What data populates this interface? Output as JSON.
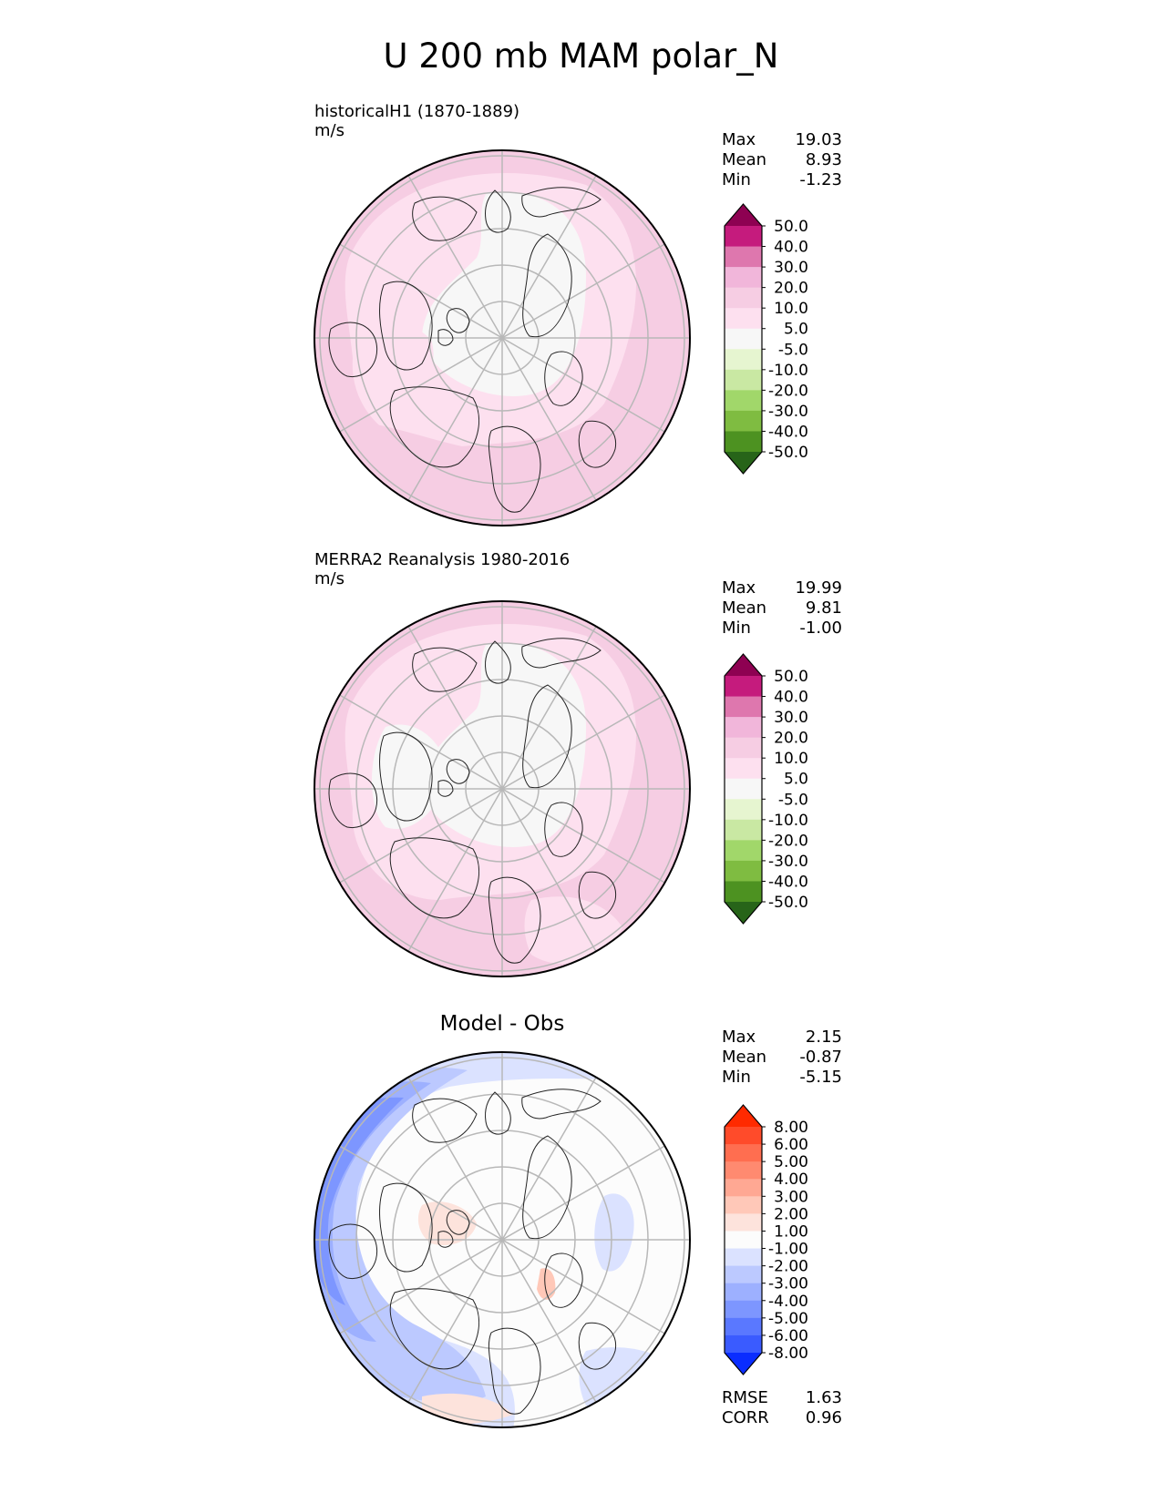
{
  "title": "U 200 mb MAM polar_N",
  "panels": [
    {
      "label_line1": "historicalH1 (1870-1889)",
      "label_line2": "m/s",
      "stats": [
        {
          "label": "Max",
          "value": "19.03"
        },
        {
          "label": "Mean",
          "value": "8.93"
        },
        {
          "label": "Min",
          "value": "-1.23"
        }
      ]
    },
    {
      "label_line1": "MERRA2 Reanalysis 1980-2016",
      "label_line2": "m/s",
      "stats": [
        {
          "label": "Max",
          "value": "19.99"
        },
        {
          "label": "Mean",
          "value": "9.81"
        },
        {
          "label": "Min",
          "value": "-1.00"
        }
      ]
    },
    {
      "title": "Model - Obs",
      "stats": [
        {
          "label": "Max",
          "value": "2.15"
        },
        {
          "label": "Mean",
          "value": "-0.87"
        },
        {
          "label": "Min",
          "value": "-5.15"
        }
      ],
      "extra_stats": [
        {
          "label": "RMSE",
          "value": "1.63"
        },
        {
          "label": "CORR",
          "value": "0.96"
        }
      ]
    }
  ],
  "chart_data": [
    {
      "type": "heatmap",
      "title": "historicalH1 (1870-1889)",
      "units": "m/s",
      "projection": "polar_N",
      "colorbar": {
        "levels": [
          "50.0",
          "40.0",
          "30.0",
          "20.0",
          "10.0",
          "5.0",
          "-5.0",
          "-10.0",
          "-20.0",
          "-30.0",
          "-40.0",
          "-50.0"
        ],
        "colors": [
          "#8e0152",
          "#c51b7d",
          "#de77ae",
          "#f1b6da",
          "#f6cde3",
          "#fde0ef",
          "#f7f7f7",
          "#e6f5d0",
          "#c9e8a3",
          "#a1d76a",
          "#7fbc41",
          "#4d9221",
          "#276419"
        ],
        "extend": "both"
      },
      "stats": {
        "max": 19.03,
        "mean": 8.93,
        "min": -1.23
      }
    },
    {
      "type": "heatmap",
      "title": "MERRA2 Reanalysis 1980-2016",
      "units": "m/s",
      "projection": "polar_N",
      "colorbar": {
        "levels": [
          "50.0",
          "40.0",
          "30.0",
          "20.0",
          "10.0",
          "5.0",
          "-5.0",
          "-10.0",
          "-20.0",
          "-30.0",
          "-40.0",
          "-50.0"
        ],
        "colors": [
          "#8e0152",
          "#c51b7d",
          "#de77ae",
          "#f1b6da",
          "#f6cde3",
          "#fde0ef",
          "#f7f7f7",
          "#e6f5d0",
          "#c9e8a3",
          "#a1d76a",
          "#7fbc41",
          "#4d9221",
          "#276419"
        ],
        "extend": "both"
      },
      "stats": {
        "max": 19.99,
        "mean": 9.81,
        "min": -1.0
      }
    },
    {
      "type": "heatmap",
      "title": "Model - Obs",
      "projection": "polar_N",
      "colorbar": {
        "levels": [
          "8.00",
          "6.00",
          "5.00",
          "4.00",
          "3.00",
          "2.00",
          "1.00",
          "-1.00",
          "-2.00",
          "-3.00",
          "-4.00",
          "-5.00",
          "-6.00",
          "-8.00"
        ],
        "colors": [
          "#ff2a00",
          "#ff4b2a",
          "#ff6e50",
          "#ff8a70",
          "#ffa893",
          "#ffc8b8",
          "#fde3dc",
          "#fcfcfc",
          "#dbe2ff",
          "#bcc9ff",
          "#9db0ff",
          "#7d96ff",
          "#5a78ff",
          "#3a5bff",
          "#0a2dff"
        ],
        "extend": "both"
      },
      "stats": {
        "max": 2.15,
        "mean": -0.87,
        "min": -5.15,
        "rmse": 1.63,
        "corr": 0.96
      }
    }
  ]
}
